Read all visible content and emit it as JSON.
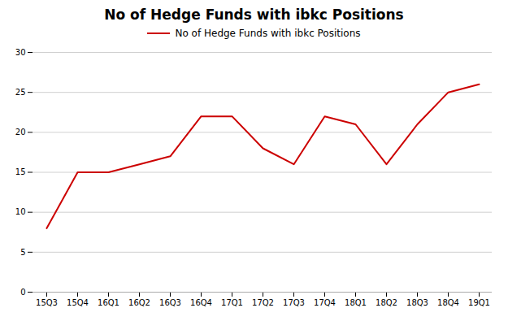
{
  "chart_data": {
    "type": "line",
    "title": "No of Hedge Funds with ibkc Positions",
    "categories": [
      "15Q3",
      "15Q4",
      "16Q1",
      "16Q2",
      "16Q3",
      "16Q4",
      "17Q1",
      "17Q2",
      "17Q3",
      "17Q4",
      "18Q1",
      "18Q2",
      "18Q3",
      "18Q4",
      "19Q1"
    ],
    "series": [
      {
        "name": "No of Hedge Funds with ibkc Positions",
        "color": "#cc0000",
        "values": [
          8,
          15,
          15,
          16,
          17,
          22,
          22,
          18,
          16,
          22,
          21,
          16,
          21,
          25,
          26
        ]
      }
    ],
    "ylim": [
      0,
      30
    ],
    "yticks": [
      0,
      5,
      10,
      15,
      20,
      25,
      30
    ],
    "grid": true,
    "legend": "top"
  }
}
